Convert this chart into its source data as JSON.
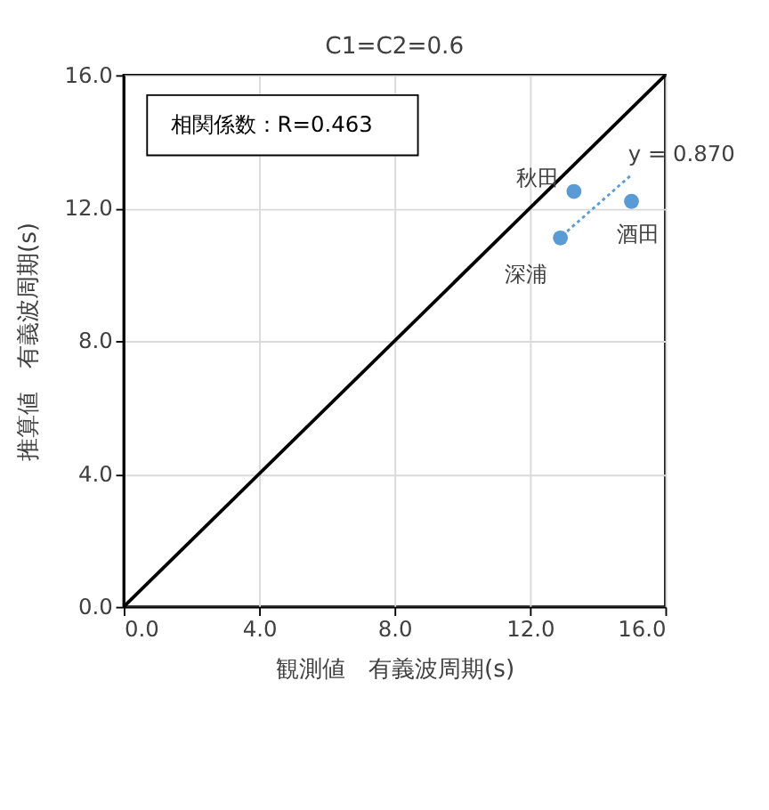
{
  "chart_data": {
    "type": "scatter",
    "title": "C1=C2=0.6",
    "xlabel": "観測値　有義波周期(s)",
    "ylabel": "推算値　有義波周期(s)",
    "xlim": [
      0,
      16
    ],
    "ylim": [
      0,
      16
    ],
    "xticks": [
      {
        "value": 0,
        "label": "0.0"
      },
      {
        "value": 4,
        "label": "4.0"
      },
      {
        "value": 8,
        "label": "8.0"
      },
      {
        "value": 12,
        "label": "12.0"
      },
      {
        "value": 16,
        "label": "16.0"
      }
    ],
    "yticks": [
      {
        "value": 0,
        "label": "0.0"
      },
      {
        "value": 4,
        "label": "4.0"
      },
      {
        "value": 8,
        "label": "8.0"
      },
      {
        "value": 12,
        "label": "12.0"
      },
      {
        "value": 16,
        "label": "16.0"
      }
    ],
    "grid": true,
    "legend": false,
    "series": [
      {
        "type": "line",
        "color": "#000000",
        "x": [
          0,
          16
        ],
        "values": [
          0,
          16
        ],
        "line_style": "solid",
        "marker": "none"
      },
      {
        "color": "#5b9bd5",
        "x": [
          13.3,
          15.0,
          12.9
        ],
        "values": [
          12.5,
          12.2,
          11.1
        ],
        "marker": "circle"
      },
      {
        "type": "line",
        "color": "#5b9bd5",
        "x": [
          13.1,
          15.0
        ],
        "values": [
          11.3,
          13.0
        ],
        "line_style": "dotted",
        "marker": "none"
      }
    ],
    "annotations": [
      "相関係数：R=0.463",
      {
        "text": "秋田",
        "x": 13.3,
        "y": 12.5
      },
      {
        "text": "酒田",
        "x": 15.0,
        "y": 12.2
      },
      {
        "text": "深浦",
        "x": 12.9,
        "y": 11.1
      },
      {
        "text": "y = 0.870",
        "x": 15.0,
        "y": 13.0
      }
    ]
  }
}
